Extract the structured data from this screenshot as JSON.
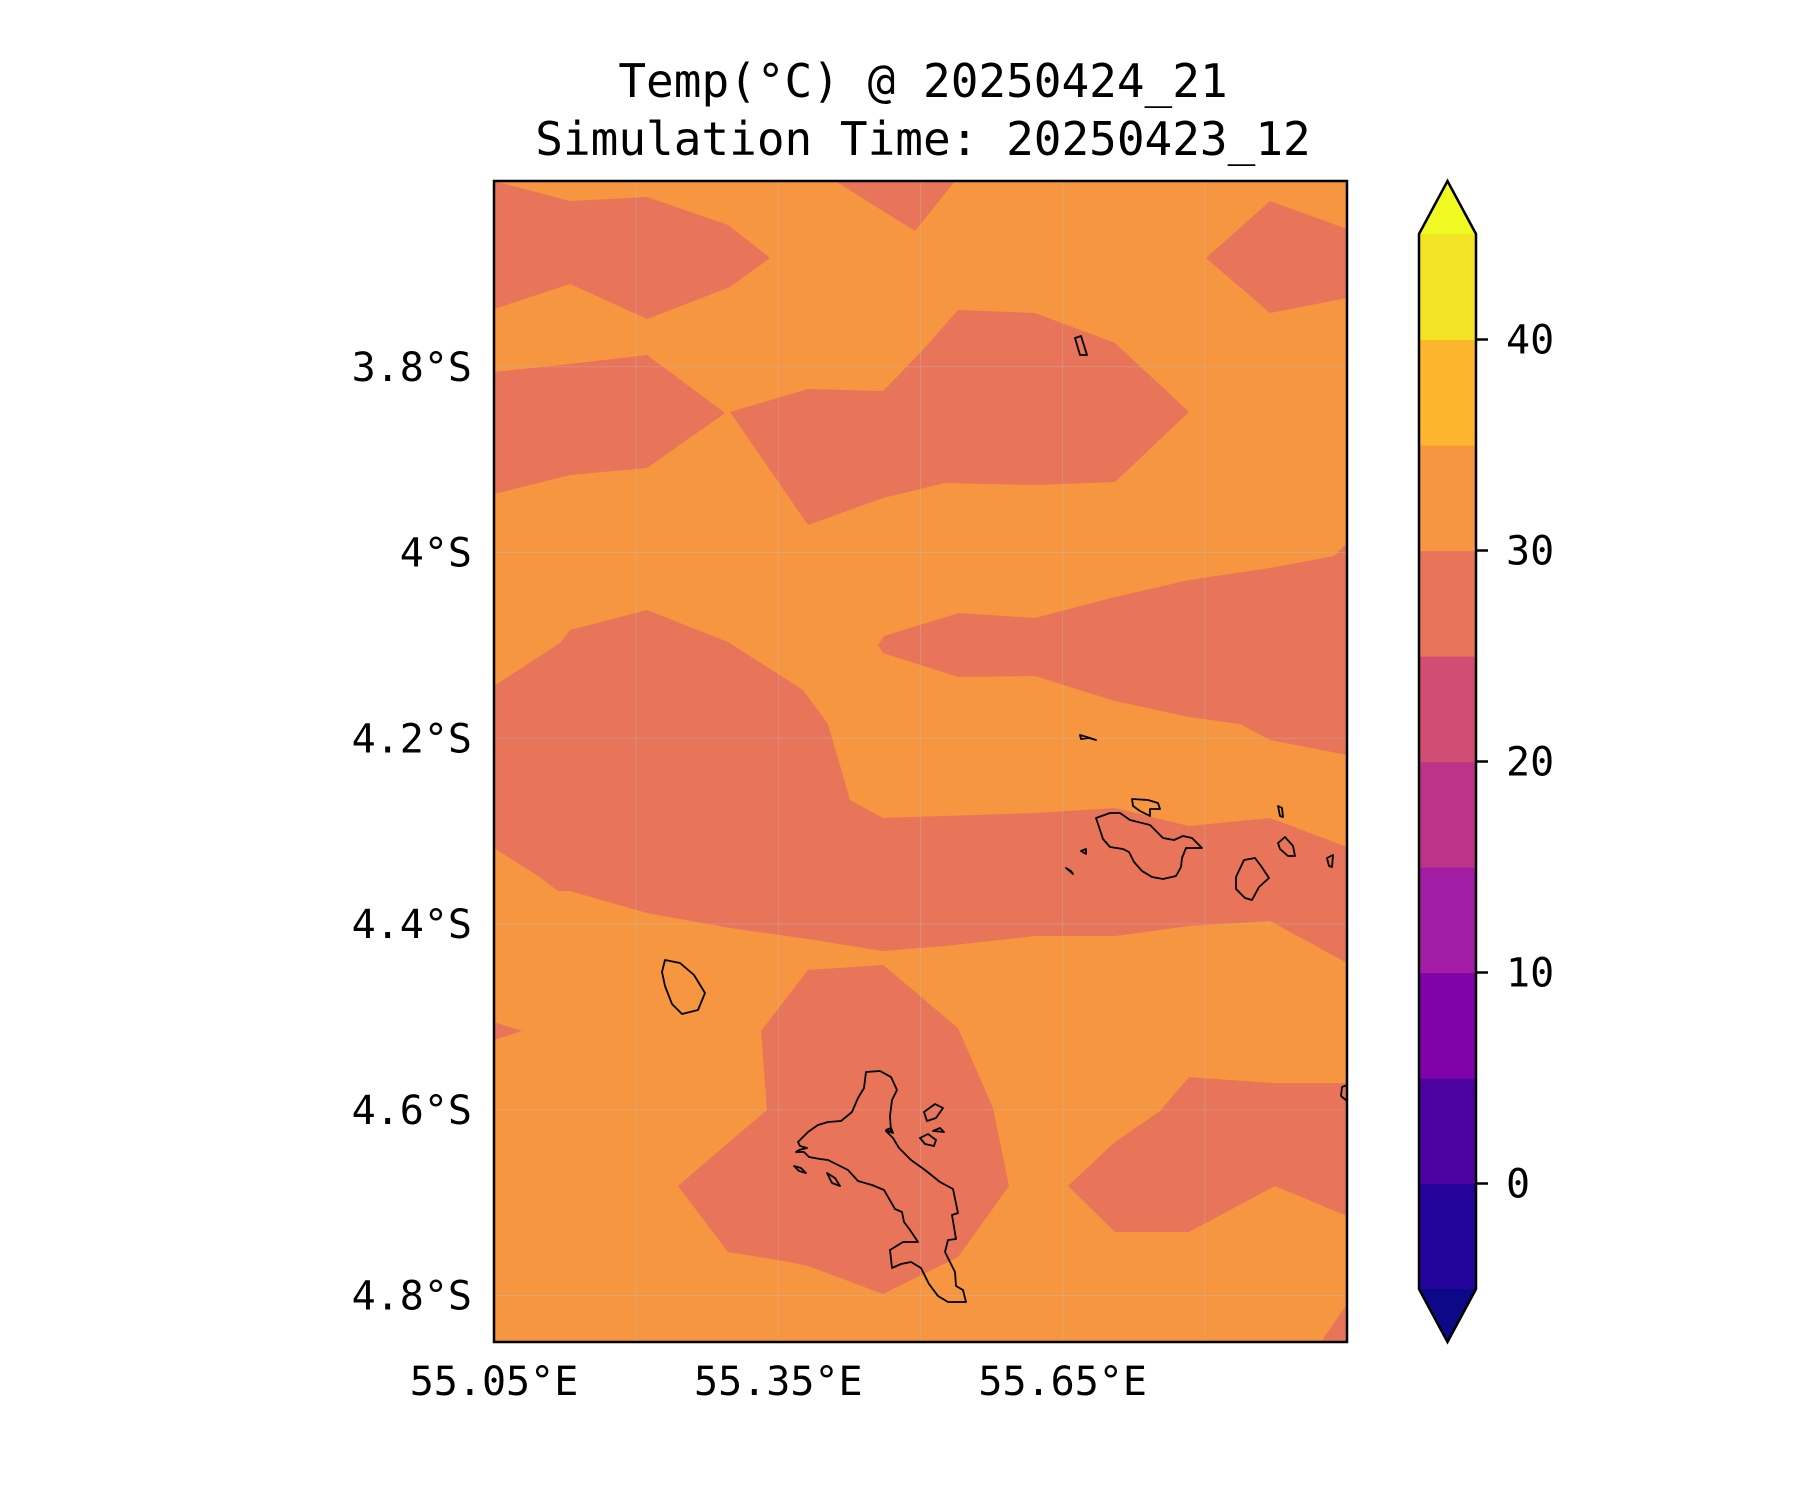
{
  "title": {
    "line1": "Temp(°C) @ 20250424_21",
    "line2": "Simulation Time: 20250423_12"
  },
  "colors": {
    "band_25_30": "#e8745a",
    "band_30_35": "#f69640",
    "coastline": "#000000",
    "gridline": "#bfbfbf"
  },
  "chart_data": {
    "type": "heatmap",
    "variable": "Temp",
    "units": "°C",
    "xlim": [
      55.05,
      55.95
    ],
    "ylim": [
      -4.85,
      -3.6
    ],
    "x_ticks": [
      {
        "value": 55.05,
        "label": "55.05°E"
      },
      {
        "value": 55.35,
        "label": "55.35°E"
      },
      {
        "value": 55.65,
        "label": "55.65°E"
      }
    ],
    "y_ticks": [
      {
        "value": -3.8,
        "label": "3.8°S"
      },
      {
        "value": -4.0,
        "label": "4°S"
      },
      {
        "value": -4.2,
        "label": "4.2°S"
      },
      {
        "value": -4.4,
        "label": "4.4°S"
      },
      {
        "value": -4.6,
        "label": "4.6°S"
      },
      {
        "value": -4.8,
        "label": "4.8°S"
      }
    ],
    "colorbar": {
      "min": -5,
      "max": 45,
      "extend": "both",
      "under_color": "#0d0887",
      "over_color": "#f0f921",
      "levels": [
        {
          "from": -5,
          "to": 0,
          "color": "#24049b"
        },
        {
          "from": 0,
          "to": 5,
          "color": "#4c02a1"
        },
        {
          "from": 5,
          "to": 10,
          "color": "#7e03a8"
        },
        {
          "from": 10,
          "to": 15,
          "color": "#a21da4"
        },
        {
          "from": 15,
          "to": 20,
          "color": "#bc3488"
        },
        {
          "from": 20,
          "to": 25,
          "color": "#d14e72"
        },
        {
          "from": 25,
          "to": 30,
          "color": "#e8745a"
        },
        {
          "from": 30,
          "to": 35,
          "color": "#f69640"
        },
        {
          "from": 35,
          "to": 40,
          "color": "#fdb42f"
        },
        {
          "from": 40,
          "to": 45,
          "color": "#f3e325"
        }
      ],
      "ticks": [
        {
          "value": 0,
          "label": "0"
        },
        {
          "value": 10,
          "label": "10"
        },
        {
          "value": 20,
          "label": "20"
        },
        {
          "value": 30,
          "label": "30"
        },
        {
          "value": 40,
          "label": "40"
        }
      ]
    },
    "background_range": [
      30,
      35
    ],
    "regions_range": [
      25,
      30
    ]
  }
}
